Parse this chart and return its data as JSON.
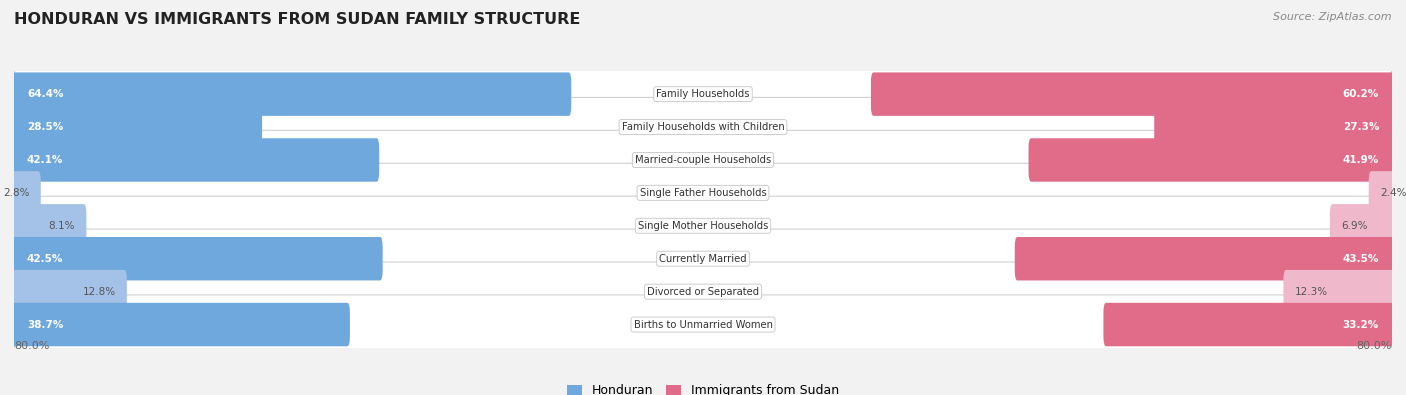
{
  "title": "HONDURAN VS IMMIGRANTS FROM SUDAN FAMILY STRUCTURE",
  "source": "Source: ZipAtlas.com",
  "categories": [
    "Family Households",
    "Family Households with Children",
    "Married-couple Households",
    "Single Father Households",
    "Single Mother Households",
    "Currently Married",
    "Divorced or Separated",
    "Births to Unmarried Women"
  ],
  "honduran_values": [
    64.4,
    28.5,
    42.1,
    2.8,
    8.1,
    42.5,
    12.8,
    38.7
  ],
  "sudan_values": [
    60.2,
    27.3,
    41.9,
    2.4,
    6.9,
    43.5,
    12.3,
    33.2
  ],
  "honduran_color_strong": "#6fa8dc",
  "sudan_color_strong": "#e06c8a",
  "honduran_color_light": "#a4c2e8",
  "sudan_color_light": "#f0b8cb",
  "axis_max": 80.0,
  "legend_label_1": "Honduran",
  "legend_label_2": "Immigrants from Sudan",
  "background_color": "#f2f2f2",
  "row_bg_color": "#ffffff",
  "row_border_color": "#d0d0d0",
  "strong_threshold": 20.0,
  "label_white": "#ffffff",
  "label_dark": "#555555"
}
